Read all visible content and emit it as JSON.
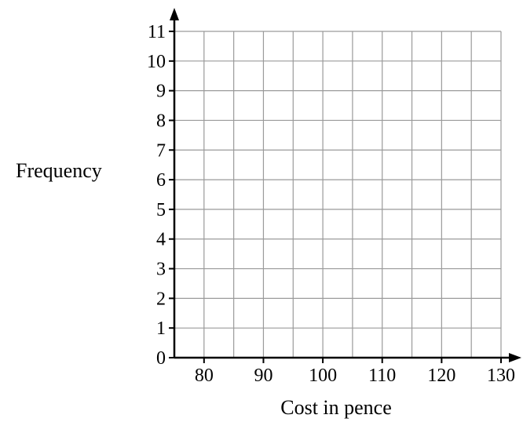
{
  "chart_data": {
    "type": "bar",
    "title": "",
    "xlabel": "Cost in pence",
    "ylabel": "Frequency",
    "x_ticks": [
      80,
      90,
      100,
      110,
      120,
      130
    ],
    "y_ticks": [
      0,
      1,
      2,
      3,
      4,
      5,
      6,
      7,
      8,
      9,
      10,
      11
    ],
    "xlim": [
      75,
      130
    ],
    "ylim": [
      0,
      11
    ],
    "x_grid_step": 5,
    "y_grid_step": 1,
    "grid": true,
    "series": []
  },
  "colors": {
    "grid": "#9a9a9a",
    "axis": "#000000"
  }
}
